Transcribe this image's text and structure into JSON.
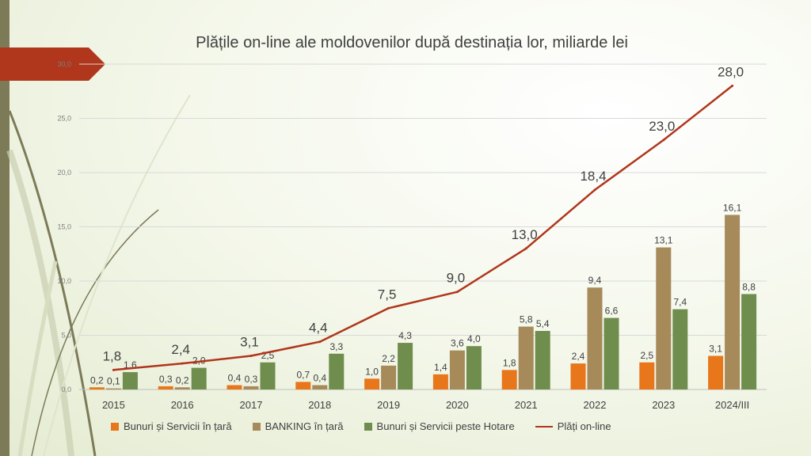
{
  "title": "Plățile on-line ale moldovenilor după destinația lor, miliarde lei",
  "colors": {
    "bunuri": "#e8761a",
    "banking": "#a68a5a",
    "hotare": "#6f8d4d",
    "line": "#b0361c"
  },
  "chart_data": {
    "type": "bar",
    "categories": [
      "2015",
      "2016",
      "2017",
      "2018",
      "2019",
      "2020",
      "2021",
      "2022",
      "2023",
      "2024/III"
    ],
    "ylim": [
      0,
      30
    ],
    "yticks": [
      "0,0",
      "5,0",
      "10,0",
      "15,0",
      "20,0",
      "25,0",
      "30,0"
    ],
    "grid": true,
    "legend_position": "bottom",
    "series": [
      {
        "name": "Bunuri și Servicii în țară",
        "type": "bar",
        "values": [
          0.2,
          0.3,
          0.4,
          0.7,
          1.0,
          1.4,
          1.8,
          2.4,
          2.5,
          3.1
        ],
        "labels": [
          "0,2",
          "0,3",
          "0,4",
          "0,7",
          "1,0",
          "1,4",
          "1,8",
          "2,4",
          "2,5",
          "3,1"
        ]
      },
      {
        "name": "BANKING în țară",
        "type": "bar",
        "values": [
          0.1,
          0.2,
          0.3,
          0.4,
          2.2,
          3.6,
          5.8,
          9.4,
          13.1,
          16.1
        ],
        "labels": [
          "0,1",
          "0,2",
          "0,3",
          "0,4",
          "2,2",
          "3,6",
          "5,8",
          "9,4",
          "13,1",
          "16,1"
        ]
      },
      {
        "name": "Bunuri și Servicii peste Hotare",
        "type": "bar",
        "values": [
          1.6,
          2.0,
          2.5,
          3.3,
          4.3,
          4.0,
          5.4,
          6.6,
          7.4,
          8.8
        ],
        "labels": [
          "1,6",
          "2,0",
          "2,5",
          "3,3",
          "4,3",
          "4,0",
          "5,4",
          "6,6",
          "7,4",
          "8,8"
        ]
      },
      {
        "name": "Plăți on-line",
        "type": "line",
        "values": [
          1.8,
          2.4,
          3.1,
          4.4,
          7.5,
          9.0,
          13.0,
          18.4,
          23.0,
          28.0
        ],
        "labels": [
          "1,8",
          "2,4",
          "3,1",
          "4,4",
          "7,5",
          "9,0",
          "13,0",
          "18,4",
          "23,0",
          "28,0"
        ]
      }
    ]
  }
}
